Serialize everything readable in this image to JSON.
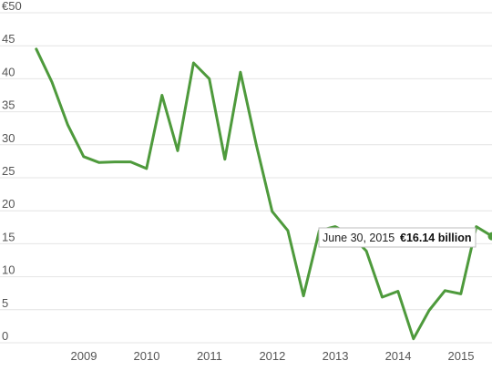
{
  "chart_data": {
    "type": "line",
    "x": [
      "2008-03-31",
      "2008-06-30",
      "2008-09-30",
      "2008-12-31",
      "2009-03-31",
      "2009-06-30",
      "2009-09-30",
      "2009-12-31",
      "2010-03-31",
      "2010-06-30",
      "2010-09-30",
      "2010-12-31",
      "2011-03-31",
      "2011-06-30",
      "2011-09-30",
      "2011-12-31",
      "2012-03-31",
      "2012-06-30",
      "2012-09-30",
      "2012-12-31",
      "2013-03-31",
      "2013-06-30",
      "2013-09-30",
      "2013-12-31",
      "2014-03-31",
      "2014-06-30",
      "2014-09-30",
      "2014-12-31",
      "2015-03-31",
      "2015-06-30"
    ],
    "series": [
      {
        "values": [
          44.5,
          39.5,
          33.0,
          28.2,
          27.3,
          27.4,
          27.4,
          26.4,
          37.5,
          29.1,
          42.4,
          40.0,
          27.8,
          41.0,
          30.0,
          19.9,
          17.0,
          7.1,
          17.0,
          17.6,
          16.4,
          13.9,
          6.9,
          7.8,
          0.6,
          4.9,
          7.9,
          7.4,
          17.6,
          16.14
        ]
      }
    ],
    "y_ticks": [
      "€50",
      "45",
      "40",
      "35",
      "30",
      "25",
      "20",
      "15",
      "10",
      "5",
      "0"
    ],
    "x_ticks": [
      "2009",
      "2010",
      "2011",
      "2012",
      "2013",
      "2014",
      "2015"
    ],
    "ylim": [
      0,
      50
    ],
    "grid": true,
    "line_color": "#4e9a3c",
    "tooltip": {
      "date": "June 30, 2015",
      "value": "€16.14 billion"
    }
  }
}
